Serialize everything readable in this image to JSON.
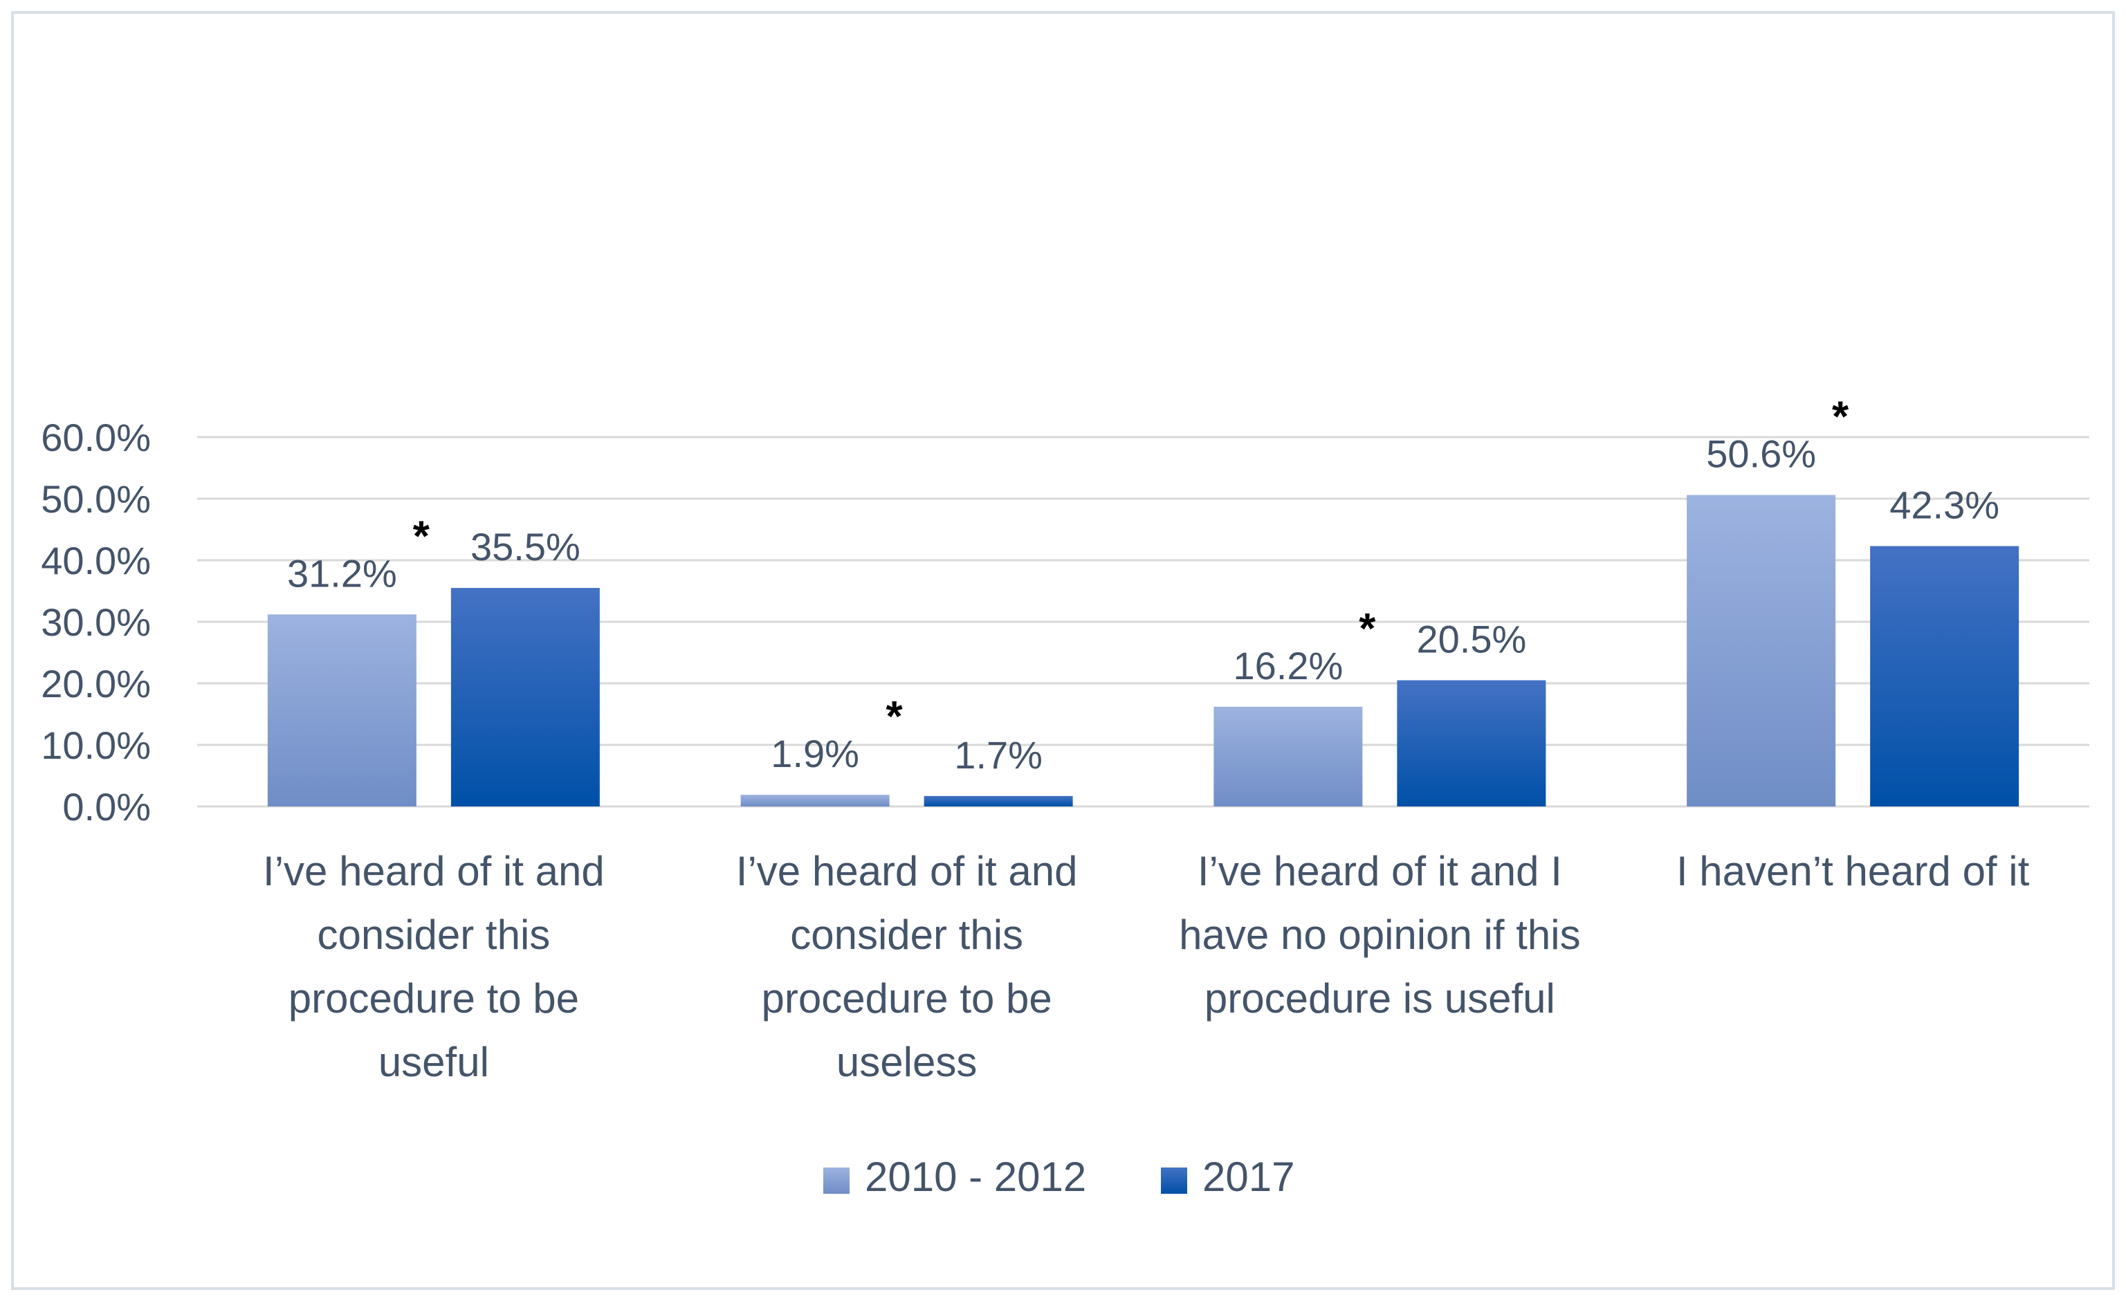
{
  "chart_data": {
    "type": "bar",
    "title": "",
    "xlabel": "",
    "ylabel": "",
    "ylim": [
      0,
      60
    ],
    "yticks": [
      "0.0%",
      "10.0%",
      "20.0%",
      "30.0%",
      "40.0%",
      "50.0%",
      "60.0%"
    ],
    "grid": true,
    "legend_position": "bottom",
    "categories": [
      [
        "I’ve heard of it and",
        "consider this",
        "procedure to be",
        "useful"
      ],
      [
        "I’ve heard of it and",
        "consider this",
        "procedure to be",
        "useless"
      ],
      [
        "I’ve heard of it and I",
        "have no opinion if this",
        "procedure is useful"
      ],
      [
        "I haven’t heard of it"
      ]
    ],
    "series": [
      {
        "name": "2010 - 2012",
        "values": [
          31.2,
          1.9,
          16.2,
          50.6
        ],
        "labels": [
          "31.2%",
          "1.9%",
          "16.2%",
          "50.6%"
        ],
        "color_top": "#9db3e0",
        "color_bottom": "#6f8dc6"
      },
      {
        "name": "2017",
        "values": [
          35.5,
          1.7,
          20.5,
          42.3
        ],
        "labels": [
          "35.5%",
          "1.7%",
          "20.5%",
          "42.3%"
        ],
        "color_top": "#4472c4",
        "color_bottom": "#0050a8"
      }
    ],
    "annotations": [
      "*",
      "*",
      "*",
      "*"
    ],
    "colors": {
      "border": "#d7dee6",
      "grid": "#d9d9d9",
      "text": "#44546a",
      "star": "#000000"
    }
  }
}
